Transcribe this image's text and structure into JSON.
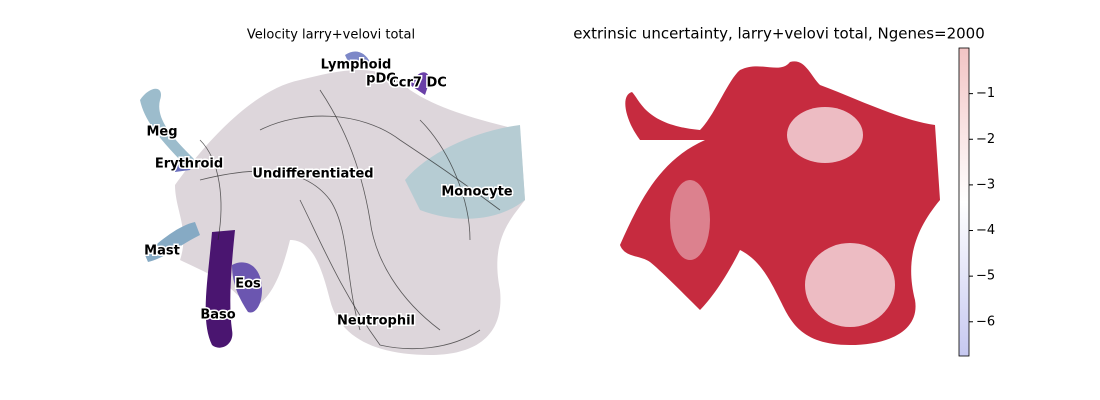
{
  "left_panel": {
    "title": "Velocity larry+velovi total",
    "labels": [
      "Lymphoid",
      "pDC",
      "Ccr7 DC",
      "Meg",
      "Erythroid",
      "Undifferentiated",
      "Monocyte",
      "Mast",
      "Eos",
      "Baso",
      "Neutrophil"
    ]
  },
  "right_panel": {
    "title": "extrinsic uncertainty, larry+velovi total, Ngenes=2000",
    "colorbar": {
      "lim": [
        -6.75,
        0
      ],
      "colors": [
        "#c6c8f0",
        "#ffffff",
        "#f2c4c4"
      ],
      "ticks": [
        {
          "value": -1,
          "label": "−1"
        },
        {
          "value": -2,
          "label": "−2"
        },
        {
          "value": -3,
          "label": "−3"
        },
        {
          "value": -4,
          "label": "−4"
        },
        {
          "value": -5,
          "label": "−5"
        },
        {
          "value": -6,
          "label": "−6"
        }
      ]
    }
  }
}
